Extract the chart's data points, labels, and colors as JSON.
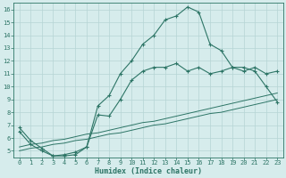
{
  "x": [
    0,
    1,
    2,
    3,
    4,
    5,
    6,
    7,
    8,
    9,
    10,
    11,
    12,
    13,
    14,
    15,
    16,
    17,
    18,
    19,
    20,
    21,
    22,
    23
  ],
  "y_main": [
    6.5,
    5.5,
    5.0,
    4.6,
    4.6,
    4.7,
    5.3,
    8.5,
    9.3,
    11.0,
    12.0,
    13.3,
    14.0,
    15.2,
    15.5,
    16.2,
    15.8,
    13.3,
    12.8,
    11.5,
    11.2,
    11.5,
    11.0,
    11.2
  ],
  "y_curve2": [
    6.8,
    5.8,
    5.2,
    4.6,
    4.7,
    4.9,
    5.3,
    7.8,
    7.7,
    9.0,
    10.5,
    11.2,
    11.5,
    11.5,
    11.8,
    11.2,
    11.5,
    11.0,
    11.2,
    11.5,
    11.5,
    11.2,
    10.0,
    8.8
  ],
  "y_line1": [
    5.0,
    5.2,
    5.3,
    5.5,
    5.6,
    5.8,
    5.9,
    6.1,
    6.3,
    6.4,
    6.6,
    6.8,
    7.0,
    7.1,
    7.3,
    7.5,
    7.7,
    7.9,
    8.0,
    8.2,
    8.4,
    8.6,
    8.8,
    9.0
  ],
  "y_line2": [
    5.3,
    5.5,
    5.6,
    5.8,
    5.9,
    6.1,
    6.3,
    6.4,
    6.6,
    6.8,
    7.0,
    7.2,
    7.3,
    7.5,
    7.7,
    7.9,
    8.1,
    8.3,
    8.5,
    8.7,
    8.9,
    9.1,
    9.3,
    9.5
  ],
  "color": "#2d7566",
  "bg_color": "#d6ecec",
  "grid_color": "#b5d5d5",
  "xlabel": "Humidex (Indice chaleur)",
  "ylim": [
    4.5,
    16.5
  ],
  "xlim": [
    -0.5,
    23.5
  ],
  "yticks": [
    5,
    6,
    7,
    8,
    9,
    10,
    11,
    12,
    13,
    14,
    15,
    16
  ],
  "xticks": [
    0,
    1,
    2,
    3,
    4,
    5,
    6,
    7,
    8,
    9,
    10,
    11,
    12,
    13,
    14,
    15,
    16,
    17,
    18,
    19,
    20,
    21,
    22,
    23
  ],
  "tick_fontsize": 5.0,
  "xlabel_fontsize": 6.0
}
